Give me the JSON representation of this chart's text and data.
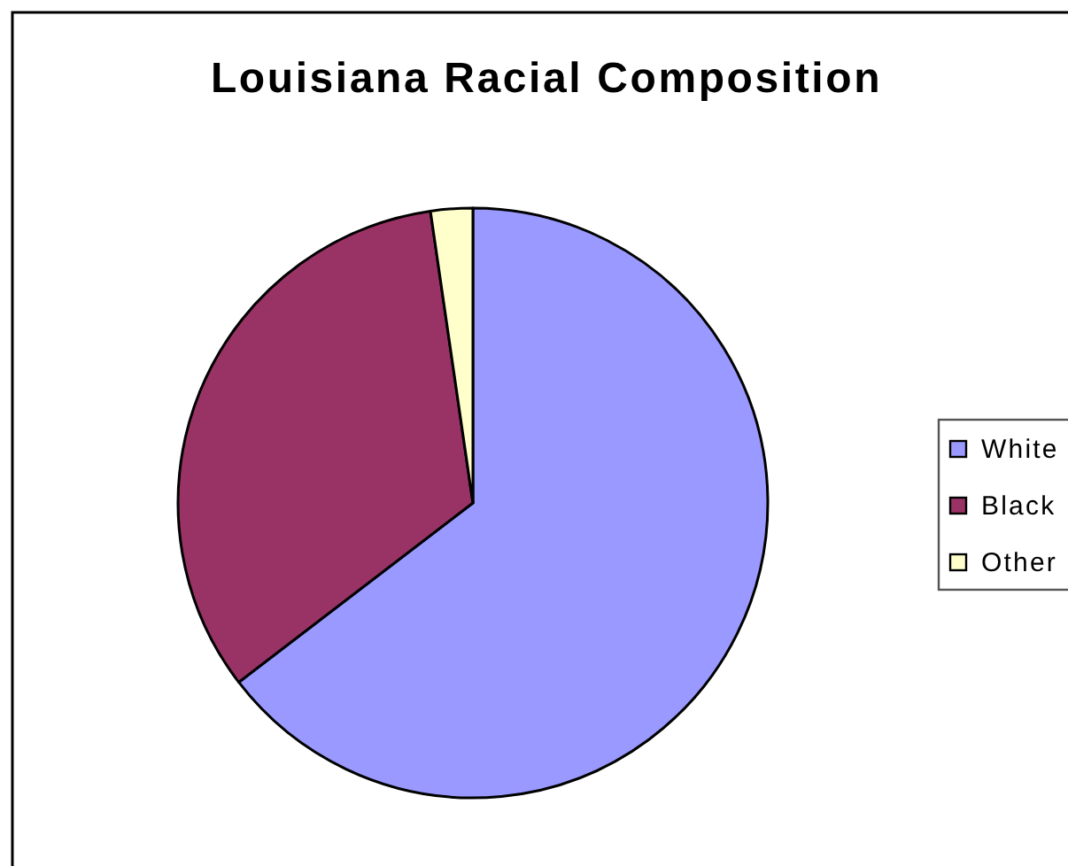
{
  "chart_data": {
    "type": "pie",
    "title": "Louisiana Racial Composition",
    "categories": [
      "White",
      "Black",
      "Other"
    ],
    "values": [
      64.6,
      33.1,
      2.3
    ],
    "colors": [
      "#9999ff",
      "#993366",
      "#ffffcc"
    ],
    "legend": "right"
  }
}
